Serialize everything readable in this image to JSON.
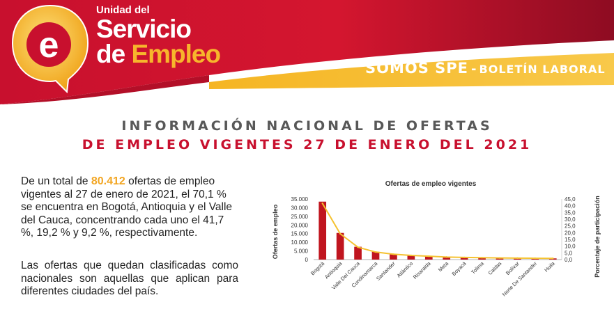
{
  "header": {
    "logo_line1": "Unidad del",
    "logo_line2": "Servicio",
    "logo_line3_a": "de ",
    "logo_line3_b": "Empleo",
    "logo_glyph": "e",
    "tagline_main": "SOMOS SPE",
    "tagline_dash": "-",
    "tagline_sub": "BOLETÍN LABORAL",
    "colors": {
      "red": "#c8102e",
      "dark_red": "#9e0f26",
      "gold": "#f2a521",
      "light_gold": "#f7c242"
    }
  },
  "headline": {
    "line1": "INFORMACIÓN NACIONAL DE OFERTAS",
    "line2": "DE EMPLEO VIGENTES 27 DE ENERO DEL 2021"
  },
  "body": {
    "p1_a": "De un total de ",
    "p1_total": "80.412",
    "p1_b": " ofertas de empleo vigentes al 27 de enero de 2021, el 70,1 % se encuentra en Bogotá, Antioquia y el Valle del Cauca, concentrando cada uno el 41,7 %, 19,2 % y 9,2 %, respectivamente.",
    "p2": "Las ofertas que quedan clasificadas como nacionales son aquellas que aplican para diferentes ciudades del país."
  },
  "chart_data": {
    "type": "bar",
    "title": "Ofertas de empleo vigentes",
    "ylabel": "Ofertas de empleo",
    "y2label": "Porcentaje de participación",
    "categories": [
      "Bogotá",
      "Antioquia",
      "Valle Del Cauca",
      "Cundinamarca",
      "Santander",
      "Atlántico",
      "Risaralda",
      "Meta",
      "Boyacá",
      "Tolima",
      "Caldas",
      "Bolívar",
      "Norte De Santander",
      "Huila"
    ],
    "values": [
      33500,
      15400,
      7400,
      4500,
      3200,
      2500,
      2000,
      1500,
      1300,
      1100,
      1000,
      900,
      800,
      700
    ],
    "line_values": [
      41.7,
      19.2,
      9.2,
      5.6,
      4.0,
      3.1,
      2.5,
      1.9,
      1.6,
      1.4,
      1.2,
      1.1,
      1.0,
      0.9
    ],
    "ylim": [
      0,
      35000
    ],
    "y2lim": [
      0,
      45
    ],
    "yticks": [
      "0",
      "5.000",
      "10.000",
      "15.000",
      "20.000",
      "25.000",
      "30.000",
      "35.000"
    ],
    "y2ticks": [
      "0,0",
      "5,0",
      "10,0",
      "15,0",
      "20,0",
      "25,0",
      "30,0",
      "35,0",
      "40,0",
      "45,0"
    ],
    "colors": {
      "bar": "#c0151f",
      "line": "#f5c230"
    }
  }
}
